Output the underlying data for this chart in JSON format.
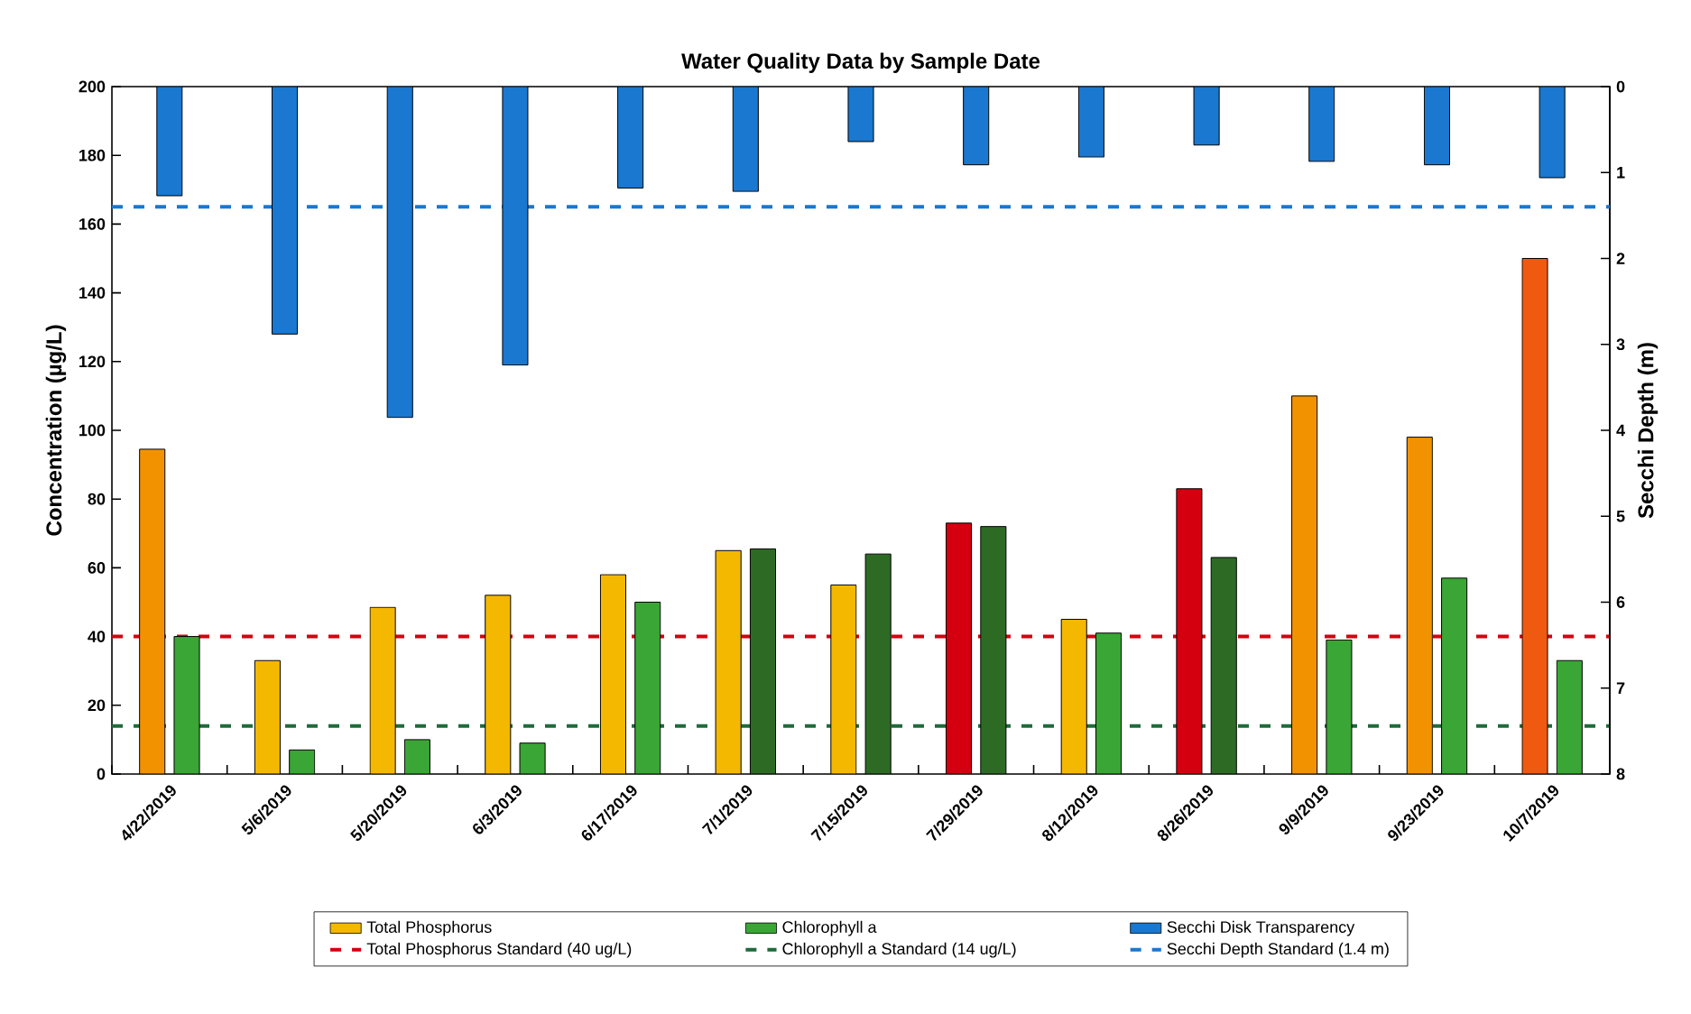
{
  "chart_data": {
    "type": "bar",
    "title": "Water Quality Data by Sample Date",
    "xlabel": null,
    "ylabel": "Concentration (µg/L)",
    "y2label": "Secchi Depth (m)",
    "categories": [
      "4/22/2019",
      "5/6/2019",
      "5/20/2019",
      "6/3/2019",
      "6/17/2019",
      "7/1/2019",
      "7/15/2019",
      "7/29/2019",
      "8/12/2019",
      "8/26/2019",
      "9/9/2019",
      "9/23/2019",
      "10/7/2019"
    ],
    "series": [
      {
        "name": "Total Phosphorus",
        "color": "#f5b800",
        "values": [
          94.5,
          33,
          48.5,
          52,
          58,
          65,
          55,
          73,
          45,
          83,
          110,
          98,
          150
        ],
        "colors": [
          "#f39200",
          "#f5b800",
          "#f5b800",
          "#f5b800",
          "#f5b800",
          "#f5b800",
          "#f5b800",
          "#d40010",
          "#f5b800",
          "#d40010",
          "#f39200",
          "#f39200",
          "#f05a10"
        ]
      },
      {
        "name": "Chlorophyll a",
        "color": "#3aa635",
        "values": [
          40,
          7,
          10,
          9,
          50,
          65.5,
          64,
          72,
          41,
          63,
          39,
          57,
          33
        ],
        "colors": [
          "#3aa635",
          "#3aa635",
          "#3aa635",
          "#3aa635",
          "#3aa635",
          "#2d6b25",
          "#2d6b25",
          "#2d6b25",
          "#3aa635",
          "#2d6b25",
          "#3aa635",
          "#3aa635",
          "#3aa635"
        ]
      },
      {
        "name": "Secchi Disk Transparency",
        "color": "#1a78d0",
        "axis": "y2",
        "values": [
          1.27,
          2.88,
          3.85,
          3.24,
          1.18,
          1.22,
          0.64,
          0.91,
          0.82,
          0.68,
          0.87,
          0.91,
          1.06
        ]
      }
    ],
    "ylim": [
      0,
      200
    ],
    "yticks": [
      0,
      20,
      40,
      60,
      80,
      100,
      120,
      140,
      160,
      180,
      200
    ],
    "y2lim": [
      8,
      0
    ],
    "y2ticks": [
      0,
      1,
      2,
      3,
      4,
      5,
      6,
      7,
      8
    ],
    "ref_lines": [
      {
        "axis": "y",
        "value": 40,
        "label": "Total Phosphorus Standard (40 ug/L)",
        "color": "#d40010",
        "line_style": "dashed"
      },
      {
        "axis": "y",
        "value": 14,
        "label": "Chlorophyll a Standard (14 ug/L)",
        "color": "#1e6b3a",
        "line_style": "dashed"
      },
      {
        "axis": "y2",
        "value": 1.4,
        "label": "Secchi Depth Standard (1.4 m)",
        "color": "#1a78d0",
        "line_style": "dashed"
      }
    ],
    "legend": "bottom"
  }
}
